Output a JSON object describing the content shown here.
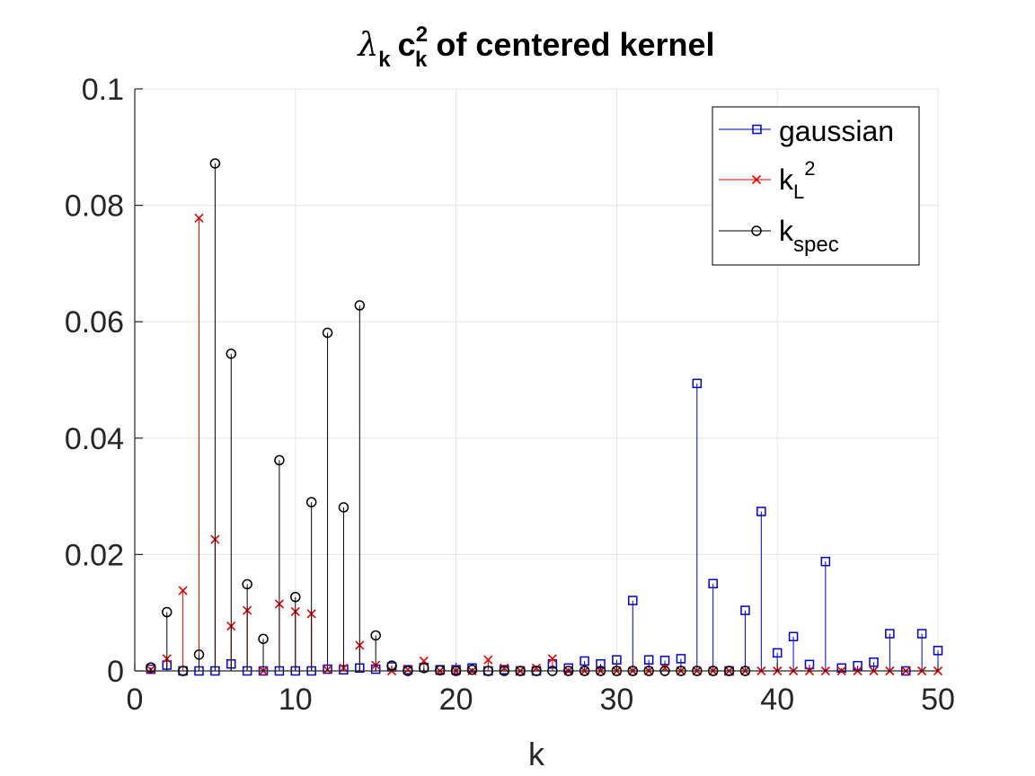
{
  "chart_data": {
    "type": "stem",
    "title": {
      "lambda": "λ",
      "lambda_sub": "k",
      "c": "c",
      "c_sup": "2",
      "c_sub": "k",
      "rest": "of centered kernel"
    },
    "xlabel": "k",
    "ylabel": "",
    "xlim": [
      0,
      50
    ],
    "ylim": [
      0,
      0.1
    ],
    "xticks": [
      0,
      10,
      20,
      30,
      40,
      50
    ],
    "yticks": [
      0,
      0.02,
      0.04,
      0.06,
      0.08,
      0.1
    ],
    "ytick_labels": [
      "0",
      "0.02",
      "0.04",
      "0.06",
      "0.08",
      "0.1"
    ],
    "grid": true,
    "legend_position": "top-right",
    "series": [
      {
        "name": "gaussian",
        "label_main": "gaussian",
        "color": "#0000cc",
        "marker": "square",
        "x": [
          1,
          2,
          3,
          4,
          5,
          6,
          7,
          8,
          9,
          10,
          11,
          12,
          13,
          14,
          15,
          16,
          17,
          18,
          19,
          20,
          21,
          22,
          23,
          24,
          25,
          26,
          27,
          28,
          29,
          30,
          31,
          32,
          33,
          34,
          35,
          36,
          37,
          38,
          39,
          40,
          41,
          42,
          43,
          44,
          45,
          46,
          47,
          48,
          49,
          50
        ],
        "values": [
          0.0003,
          0.001,
          0.0,
          0.0,
          0.0,
          0.0012,
          0.0,
          0.0,
          0.0,
          0.0,
          0.0,
          0.0003,
          0.0002,
          0.0005,
          0.0003,
          0.0007,
          0.0002,
          0.0006,
          0.0002,
          0.0002,
          0.0005,
          0.0,
          0.0002,
          0.0,
          0.0,
          0.0012,
          0.0005,
          0.0017,
          0.0012,
          0.0019,
          0.0121,
          0.0019,
          0.0018,
          0.0021,
          0.0494,
          0.015,
          0.0,
          0.0104,
          0.0274,
          0.0031,
          0.0059,
          0.0011,
          0.0188,
          0.0005,
          0.0009,
          0.0015,
          0.0064,
          0.0,
          0.0064,
          0.0035
        ]
      },
      {
        "name": "k_L^2",
        "label_main": "k",
        "label_sub": "L",
        "label_sup": "2",
        "color": "#dd0000",
        "marker": "x",
        "x": [
          1,
          2,
          3,
          4,
          5,
          6,
          7,
          8,
          9,
          10,
          11,
          12,
          13,
          14,
          15,
          16,
          17,
          18,
          19,
          20,
          21,
          22,
          23,
          24,
          25,
          26,
          27,
          28,
          29,
          30,
          31,
          32,
          33,
          34,
          35,
          36,
          37,
          38,
          39,
          40,
          41,
          42,
          43,
          44,
          45,
          46,
          47,
          48,
          49,
          50
        ],
        "values": [
          0.0002,
          0.0021,
          0.0138,
          0.0778,
          0.0226,
          0.0077,
          0.0104,
          0.0,
          0.0115,
          0.0102,
          0.0098,
          0.0002,
          0.0005,
          0.0044,
          0.001,
          0.0,
          0.0002,
          0.0017,
          0.0,
          0.0,
          0.0,
          0.0019,
          0.0005,
          0.0,
          0.0005,
          0.0021,
          0.0,
          0.0,
          0.0,
          0.0,
          0.0,
          0.0,
          0.0005,
          0.0,
          0.0,
          0.0,
          0.0,
          0.0,
          0.0,
          0.0,
          0.0,
          0.0,
          0.0,
          0.0,
          0.0,
          0.0,
          0.0,
          0.0,
          0.0,
          0.0
        ]
      },
      {
        "name": "k_spec",
        "label_main": "k",
        "label_sub": "spec",
        "color": "#000000",
        "marker": "circle",
        "x": [
          1,
          2,
          3,
          4,
          5,
          6,
          7,
          8,
          9,
          10,
          11,
          12,
          13,
          14,
          15,
          16,
          17,
          18,
          19,
          20,
          21,
          22,
          23,
          24,
          25,
          26,
          27,
          28,
          29,
          30,
          31,
          32,
          33,
          34,
          35,
          36,
          37,
          38
        ],
        "values": [
          0.0006,
          0.0101,
          0.0,
          0.0028,
          0.0872,
          0.0545,
          0.0149,
          0.0055,
          0.0362,
          0.0127,
          0.029,
          0.0581,
          0.0281,
          0.0628,
          0.0061,
          0.0009,
          0.0,
          0.0005,
          0.0001,
          0.0,
          0.0002,
          0.0,
          0.0,
          0.0,
          0.0,
          0.0,
          0.0,
          0.0,
          0.0,
          0.0,
          0.0,
          0.0,
          0.0,
          0.0,
          0.0,
          0.0,
          0.0,
          0.0
        ]
      }
    ]
  }
}
